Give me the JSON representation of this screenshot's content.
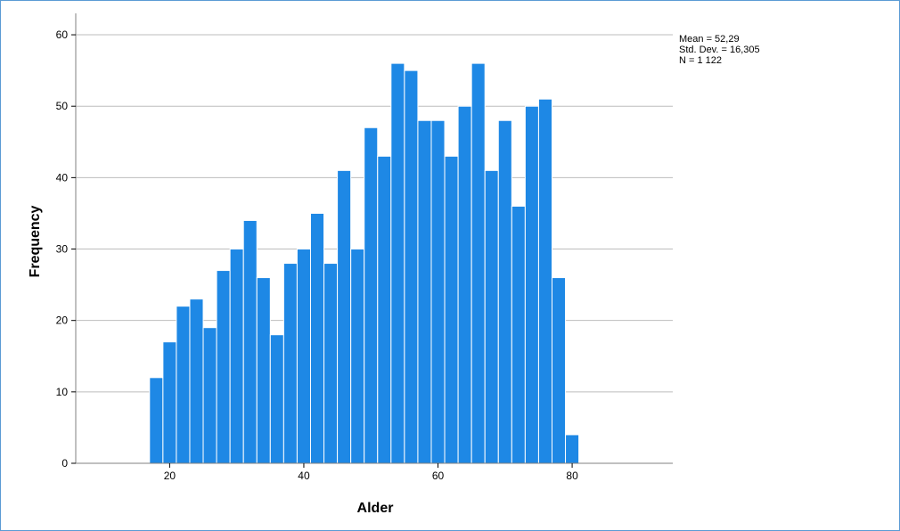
{
  "chart_data": {
    "type": "bar",
    "xlabel": "Alder",
    "ylabel": "Frequency",
    "xlim": [
      6,
      95
    ],
    "ylim": [
      0,
      63
    ],
    "bin_width": 2,
    "x_ticks": [
      20,
      40,
      60,
      80
    ],
    "y_ticks": [
      0,
      10,
      20,
      30,
      40,
      50,
      60
    ],
    "grid": "horizontal",
    "bar_color": "#1e88e5",
    "bins": [
      {
        "start": 17,
        "value": 12
      },
      {
        "start": 19,
        "value": 17
      },
      {
        "start": 21,
        "value": 22
      },
      {
        "start": 23,
        "value": 23
      },
      {
        "start": 25,
        "value": 19
      },
      {
        "start": 27,
        "value": 27
      },
      {
        "start": 29,
        "value": 30
      },
      {
        "start": 31,
        "value": 34
      },
      {
        "start": 33,
        "value": 26
      },
      {
        "start": 35,
        "value": 18
      },
      {
        "start": 37,
        "value": 28
      },
      {
        "start": 39,
        "value": 30
      },
      {
        "start": 41,
        "value": 35
      },
      {
        "start": 43,
        "value": 28
      },
      {
        "start": 45,
        "value": 41
      },
      {
        "start": 47,
        "value": 30
      },
      {
        "start": 49,
        "value": 47
      },
      {
        "start": 51,
        "value": 43
      },
      {
        "start": 53,
        "value": 56
      },
      {
        "start": 55,
        "value": 55
      },
      {
        "start": 57,
        "value": 48
      },
      {
        "start": 59,
        "value": 48
      },
      {
        "start": 61,
        "value": 43
      },
      {
        "start": 63,
        "value": 50
      },
      {
        "start": 65,
        "value": 56
      },
      {
        "start": 67,
        "value": 41
      },
      {
        "start": 69,
        "value": 48
      },
      {
        "start": 71,
        "value": 36
      },
      {
        "start": 73,
        "value": 50
      },
      {
        "start": 75,
        "value": 51
      },
      {
        "start": 77,
        "value": 26
      },
      {
        "start": 79,
        "value": 4
      }
    ],
    "statistics": {
      "mean": "Mean = 52,29",
      "std_dev": "Std. Dev. = 16,305",
      "n": "N = 1 122"
    }
  }
}
